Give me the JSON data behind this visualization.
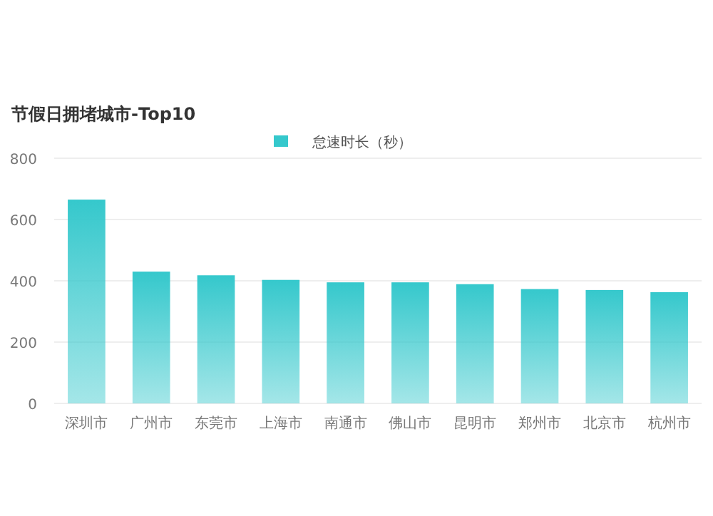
{
  "chart_data": {
    "type": "bar",
    "title": "节假日拥堵城市-Top10",
    "categories": [
      "深圳市",
      "广州市",
      "东莞市",
      "上海市",
      "南通市",
      "佛山市",
      "昆明市",
      "郑州市",
      "北京市",
      "杭州市"
    ],
    "series": [
      {
        "name": "怠速时长（秒）",
        "color": "#35c8cc",
        "values": [
          665,
          430,
          418,
          403,
          395,
          395,
          389,
          373,
          370,
          363
        ]
      }
    ],
    "ylim": [
      0,
      800
    ],
    "yticks": [
      0,
      200,
      400,
      600,
      800
    ],
    "grid": "y",
    "legend": "top"
  }
}
